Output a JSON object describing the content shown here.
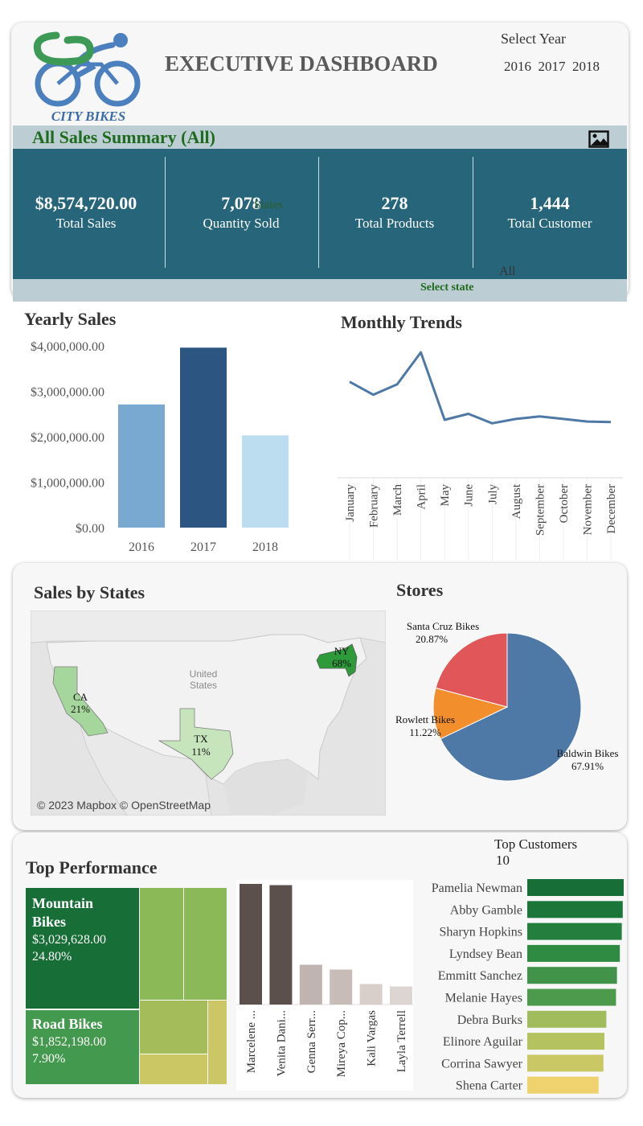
{
  "header": {
    "brand": "CITY BIKES",
    "title": "EXECUTIVE DASHBOARD",
    "year_filter_label": "Select Year",
    "year_options": [
      "2016",
      "2017",
      "2018"
    ]
  },
  "summary": {
    "title": "All Sales Summary (All)",
    "image_icon": "image-icon",
    "overlay_states": "States",
    "overlay_all": "All",
    "select_state_label": "Select state",
    "kpis": [
      {
        "value": "$8,574,720.00",
        "label": "Total Sales"
      },
      {
        "value": "7,078",
        "label": "Quantity Sold"
      },
      {
        "value": "278",
        "label": "Total Products"
      },
      {
        "value": "1,444",
        "label": "Total Customer"
      }
    ]
  },
  "colors": {
    "header_band": "#bcced3",
    "kpi_band": "#27657a",
    "green_title": "#1e6b1e"
  },
  "chart_data": [
    {
      "id": "yearly-sales",
      "type": "bar",
      "title": "Yearly Sales",
      "categories": [
        "2016",
        "2017",
        "2018"
      ],
      "values": [
        2710000,
        3960000,
        2030000
      ],
      "colors": [
        "#79a9d1",
        "#2c5582",
        "#bcdcef"
      ],
      "yticks": [
        "$4,000,000.00",
        "$3,000,000.00",
        "$2,000,000.00",
        "$1,000,000.00",
        "$0.00"
      ],
      "ytick_values": [
        4000000,
        3000000,
        2000000,
        1000000,
        0
      ],
      "ylim": [
        0,
        4000000
      ]
    },
    {
      "id": "monthly-trends",
      "type": "line",
      "title": "Monthly Trends",
      "categories": [
        "January",
        "February",
        "March",
        "April",
        "May",
        "June",
        "July",
        "August",
        "September",
        "October",
        "November",
        "December"
      ],
      "values": [
        1110000,
        960000,
        1080000,
        1450000,
        670000,
        740000,
        630000,
        680000,
        710000,
        680000,
        650000,
        645000
      ],
      "ylim": [
        0,
        1600000
      ],
      "color": "#4e79a7"
    },
    {
      "id": "sales-by-states",
      "type": "map",
      "title": "Sales by States",
      "attribution": "© 2023 Mapbox © OpenStreetMap",
      "country_label_1": "United",
      "country_label_2": "States",
      "regions": [
        {
          "state": "CA",
          "share": "21%",
          "color": "#a5d69b"
        },
        {
          "state": "TX",
          "share": "11%",
          "color": "#c7e5bd"
        },
        {
          "state": "NY",
          "share": "68%",
          "color": "#2f9a3a"
        }
      ]
    },
    {
      "id": "stores",
      "type": "pie",
      "title": "Stores",
      "slices": [
        {
          "name": "Baldwin Bikes",
          "value": 67.91,
          "label": "67.91%",
          "color": "#4e79a7"
        },
        {
          "name": "Rowlett Bikes",
          "value": 11.22,
          "label": "11.22%",
          "color": "#f28e2b"
        },
        {
          "name": "Santa Cruz Bikes",
          "value": 20.87,
          "label": "20.87%",
          "color": "#e15759"
        }
      ]
    },
    {
      "id": "top-performance",
      "type": "treemap",
      "title": "Top Performance",
      "tiles": [
        {
          "name": "Mountain Bikes",
          "value": "$3,029,628.00",
          "share": "24.80%",
          "color": "#176e36"
        },
        {
          "name": "Road Bikes",
          "value": "$1,852,198.00",
          "share": "7.90%",
          "color": "#43994d"
        }
      ],
      "other_tile_colors": [
        "#8cb958",
        "#8cb958",
        "#a4bd5a",
        "#cbc764",
        "#cbc764"
      ]
    },
    {
      "id": "top-staff",
      "type": "bar",
      "categories": [
        "Marcelene ...",
        "Venita Dani...",
        "Genna Serr...",
        "Mireya Cop...",
        "Kali Vargas",
        "Layla Terrell"
      ],
      "values": [
        100,
        99,
        33,
        29,
        17,
        15
      ],
      "colors": [
        "#5c504c",
        "#5c504c",
        "#bfb4b0",
        "#c8bcb8",
        "#d8cfcb",
        "#ddd5d1"
      ],
      "ylim": [
        0,
        100
      ]
    },
    {
      "id": "top-customers",
      "type": "bar",
      "orientation": "horizontal",
      "title": "Top Customers",
      "filter_value": "10",
      "categories": [
        "Pamelia Newman",
        "Abby Gamble",
        "Sharyn Hopkins",
        "Lyndsey Bean",
        "Emmitt Sanchez",
        "Melanie Hayes",
        "Debra Burks",
        "Elinore Aguilar",
        "Corrina Sawyer",
        "Shena Carter"
      ],
      "values": [
        100,
        99,
        98,
        96,
        93,
        92,
        82,
        80,
        79,
        74
      ],
      "colors": [
        "#176e36",
        "#1c7639",
        "#247e3d",
        "#2f8a42",
        "#409349",
        "#4d9a4d",
        "#a1bc5c",
        "#b4c25f",
        "#c9c864",
        "#efd26e"
      ],
      "xlim": [
        0,
        100
      ]
    }
  ]
}
